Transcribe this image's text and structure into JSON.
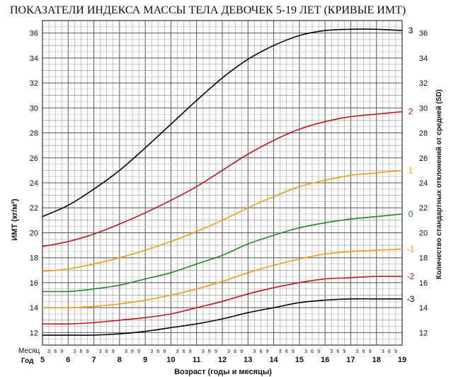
{
  "chart_data": {
    "type": "line",
    "title": "ПОКАЗАТЕЛИ ИНДЕКСА МАССЫ ТЕЛА ДЕВОЧЕК 5-19 ЛЕТ (КРИВЫЕ ИМТ)",
    "xlabel": "Возраст (годы и месяцы)",
    "ylabel": "ИМТ (кг/м²)",
    "ylabel_right": "Количество стандартных отклонений от средней (SD)",
    "row_label_month": "Месяц",
    "row_label_year": "Год",
    "month_ticks": [
      "3",
      "6",
      "9"
    ],
    "xlim": [
      5,
      19
    ],
    "ylim": [
      11,
      37
    ],
    "year_ticks": [
      "5",
      "6",
      "7",
      "8",
      "9",
      "10",
      "11",
      "12",
      "13",
      "14",
      "15",
      "16",
      "17",
      "18",
      "19"
    ],
    "y_ticks": [
      "12",
      "14",
      "16",
      "18",
      "20",
      "22",
      "24",
      "26",
      "28",
      "30",
      "32",
      "34",
      "36"
    ],
    "grid": true,
    "x": [
      5,
      6,
      7,
      8,
      9,
      10,
      11,
      12,
      13,
      14,
      15,
      16,
      17,
      18,
      19
    ],
    "series": [
      {
        "name": "3",
        "color": "#000000",
        "values": [
          21.3,
          22.2,
          23.5,
          25.0,
          26.8,
          28.7,
          30.6,
          32.4,
          33.9,
          35.0,
          35.8,
          36.2,
          36.3,
          36.3,
          36.2
        ]
      },
      {
        "name": "2",
        "color": "#c0181d",
        "values": [
          18.9,
          19.3,
          19.9,
          20.7,
          21.6,
          22.6,
          23.7,
          25.0,
          26.3,
          27.4,
          28.3,
          28.9,
          29.3,
          29.5,
          29.7
        ]
      },
      {
        "name": "1",
        "color": "#f59b1b",
        "values": [
          16.9,
          17.1,
          17.5,
          18.0,
          18.6,
          19.3,
          20.1,
          21.0,
          22.0,
          22.9,
          23.7,
          24.2,
          24.6,
          24.8,
          25.0
        ]
      },
      {
        "name": "0",
        "color": "#1c8a2a",
        "values": [
          15.3,
          15.3,
          15.5,
          15.8,
          16.3,
          16.8,
          17.5,
          18.2,
          19.1,
          19.8,
          20.4,
          20.8,
          21.1,
          21.3,
          21.5
        ]
      },
      {
        "name": "-1",
        "color": "#f59b1b",
        "values": [
          14.0,
          14.0,
          14.1,
          14.3,
          14.6,
          15.0,
          15.5,
          16.1,
          16.8,
          17.4,
          17.9,
          18.3,
          18.5,
          18.6,
          18.7
        ]
      },
      {
        "name": "-2",
        "color": "#c0181d",
        "values": [
          12.7,
          12.7,
          12.8,
          13.0,
          13.2,
          13.5,
          14.0,
          14.5,
          15.1,
          15.6,
          16.0,
          16.3,
          16.4,
          16.5,
          16.5
        ]
      },
      {
        "name": "-3",
        "color": "#000000",
        "values": [
          11.8,
          11.8,
          11.8,
          11.9,
          12.1,
          12.4,
          12.7,
          13.1,
          13.6,
          14.0,
          14.4,
          14.6,
          14.7,
          14.7,
          14.7
        ]
      }
    ]
  }
}
